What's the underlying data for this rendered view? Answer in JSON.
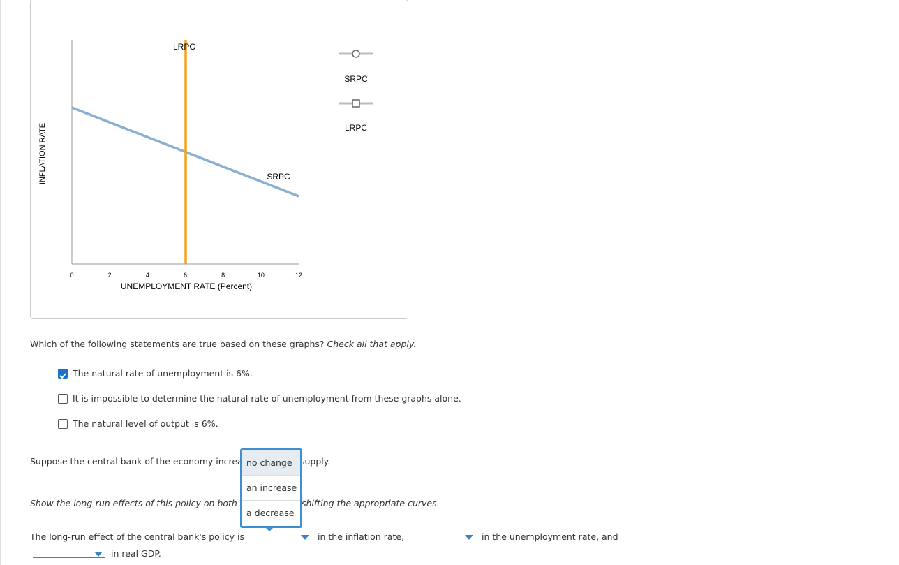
{
  "graph": {
    "xlabel": "UNEMPLOYMENT RATE (Percent)",
    "ylabel": "INFLATION RATE",
    "xlim": [
      0,
      12
    ],
    "xticks": [
      0,
      2,
      4,
      6,
      8,
      10,
      12
    ],
    "curve_labels": [
      "LRPC",
      "SRPC"
    ],
    "legend": [
      {
        "name": "SRPC",
        "marker": "circle"
      },
      {
        "name": "LRPC",
        "marker": "square"
      }
    ]
  },
  "question1": {
    "prompt": "Which of the following statements are true based on these graphs?",
    "hint": "Check all that apply.",
    "options": [
      {
        "text": "The natural rate of unemployment is 6%.",
        "checked": true
      },
      {
        "text": "It is impossible to determine the natural rate of unemployment from these graphs alone.",
        "checked": false
      },
      {
        "text": "The natural level of output is 6%.",
        "checked": false
      }
    ]
  },
  "question2": {
    "before": "Suppose the central bank of the economy increas",
    "after": "supply."
  },
  "instruction": {
    "before": "Show the long-run effects of this policy on both o",
    "after": "shifting the appropriate curves."
  },
  "dropdown": {
    "options": [
      "no change",
      "an increase",
      "a decrease"
    ]
  },
  "question3": {
    "lead": "The long-run effect of the central bank's policy is",
    "part1": "in the inflation rate,",
    "part2": "in the unemployment rate, and",
    "part3": "in real GDP."
  }
}
